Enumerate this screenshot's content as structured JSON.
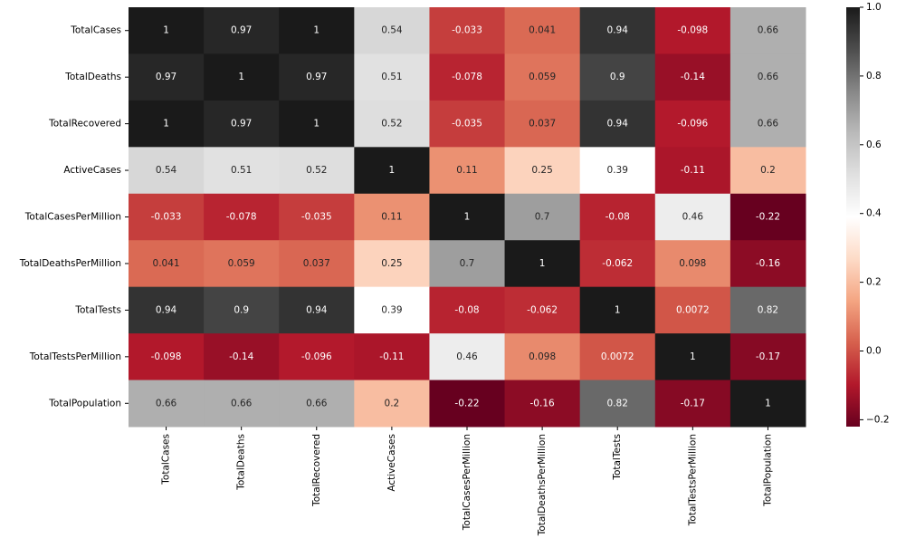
{
  "chart_data": {
    "type": "heatmap",
    "categories": [
      "TotalCases",
      "TotalDeaths",
      "TotalRecovered",
      "ActiveCases",
      "TotalCasesPerMillion",
      "TotalDeathsPerMillion",
      "TotalTests",
      "TotalTestsPerMillion",
      "TotalPopulation"
    ],
    "values": [
      [
        1,
        0.97,
        1,
        0.54,
        -0.033,
        0.041,
        0.94,
        -0.098,
        0.66
      ],
      [
        0.97,
        1,
        0.97,
        0.51,
        -0.078,
        0.059,
        0.9,
        -0.14,
        0.66
      ],
      [
        1,
        0.97,
        1,
        0.52,
        -0.035,
        0.037,
        0.94,
        -0.096,
        0.66
      ],
      [
        0.54,
        0.51,
        0.52,
        1,
        0.11,
        0.25,
        0.39,
        -0.11,
        0.2
      ],
      [
        -0.033,
        -0.078,
        -0.035,
        0.11,
        1,
        0.7,
        -0.08,
        0.46,
        -0.22
      ],
      [
        0.041,
        0.059,
        0.037,
        0.25,
        0.7,
        1,
        -0.062,
        0.098,
        -0.16
      ],
      [
        0.94,
        0.9,
        0.94,
        0.39,
        -0.08,
        -0.062,
        1,
        0.0072,
        0.82
      ],
      [
        -0.098,
        -0.14,
        -0.096,
        -0.11,
        0.46,
        0.098,
        0.0072,
        1,
        -0.17
      ],
      [
        0.66,
        0.66,
        0.66,
        0.2,
        -0.22,
        -0.16,
        0.82,
        -0.17,
        1
      ]
    ],
    "colormap": [
      "#67001f",
      "#b2182b",
      "#d6604d",
      "#f4a582",
      "#fddbc7",
      "#ffffff",
      "#e0e0e0",
      "#bababa",
      "#878787",
      "#4d4d4d",
      "#1a1a1a"
    ],
    "colorbar_lim": [
      -0.22,
      1
    ],
    "colorbar_ticks": [
      {
        "value": -0.2,
        "label": "−0.2"
      },
      {
        "value": 0,
        "label": "0.0"
      },
      0.2,
      0.4,
      0.6,
      0.8,
      {
        "value": 1,
        "label": "1.0"
      }
    ]
  }
}
